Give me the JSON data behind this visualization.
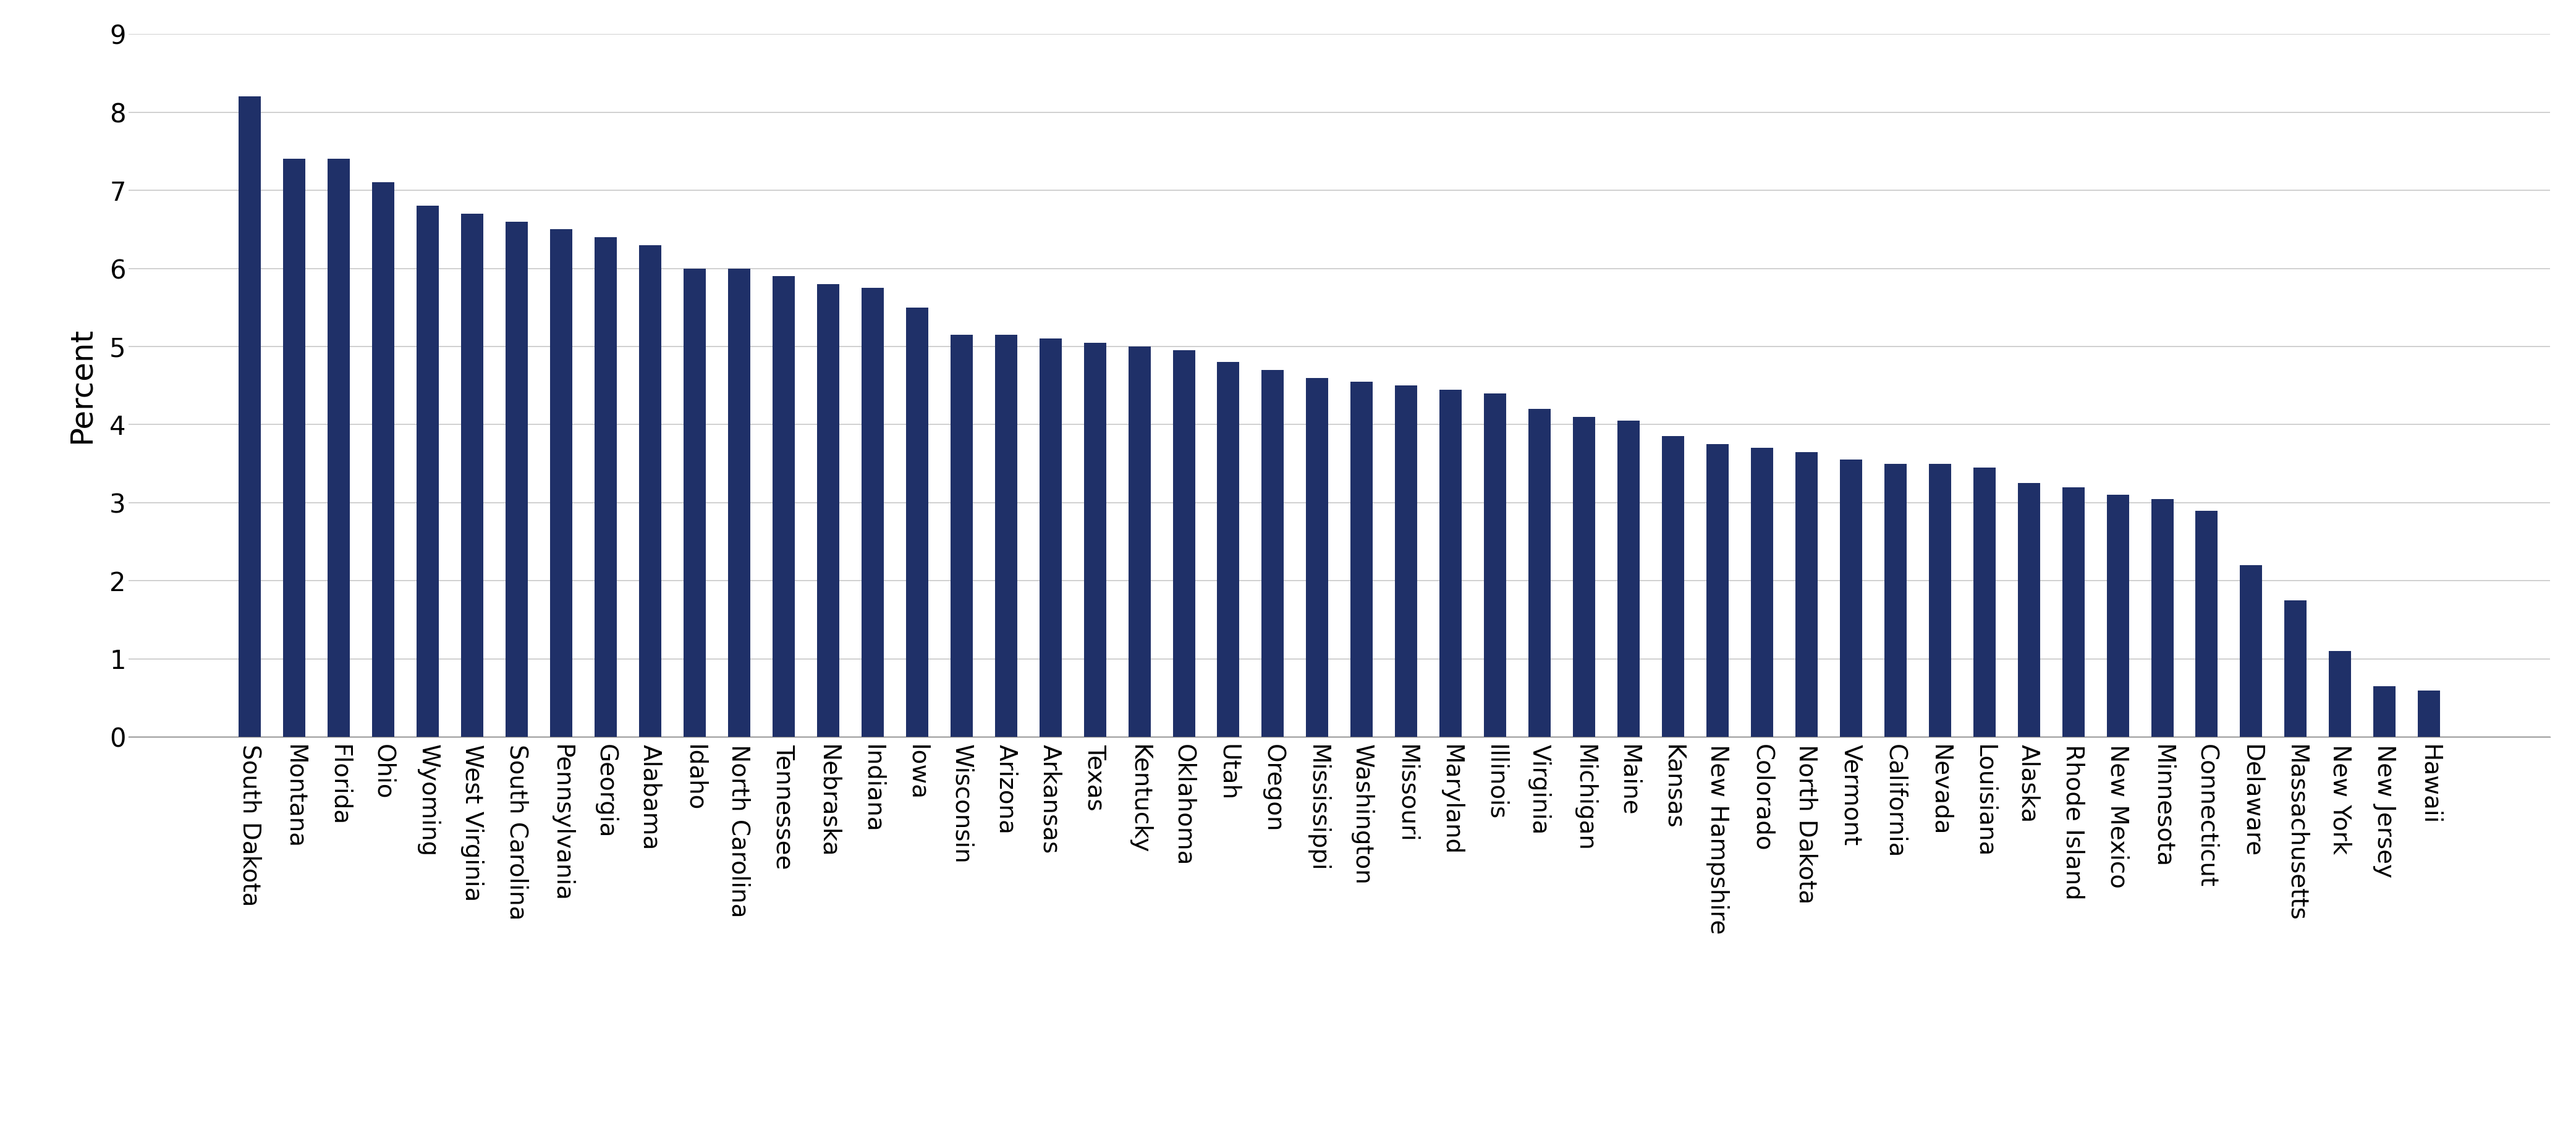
{
  "categories": [
    "South Dakota",
    "Montana",
    "Florida",
    "Ohio",
    "Wyoming",
    "West Virginia",
    "South Carolina",
    "Pennsylvania",
    "Georgia",
    "Alabama",
    "Idaho",
    "North Carolina",
    "Tennessee",
    "Nebraska",
    "Indiana",
    "Iowa",
    "Wisconsin",
    "Arizona",
    "Arkansas",
    "Texas",
    "Kentucky",
    "Oklahoma",
    "Utah",
    "Oregon",
    "Mississippi",
    "Washington",
    "Missouri",
    "Maryland",
    "Illinois",
    "Virginia",
    "Michigan",
    "Maine",
    "Kansas",
    "New Hampshire",
    "Colorado",
    "North Dakota",
    "Vermont",
    "California",
    "Nevada",
    "Louisiana",
    "Alaska",
    "Rhode Island",
    "New Mexico",
    "Minnesota",
    "Connecticut",
    "Delaware",
    "Massachusetts",
    "New York",
    "New Jersey",
    "Hawaii"
  ],
  "values": [
    8.2,
    7.4,
    7.4,
    7.1,
    6.8,
    6.7,
    6.6,
    6.5,
    6.4,
    6.3,
    6.0,
    6.0,
    5.9,
    5.8,
    5.75,
    5.5,
    5.15,
    5.15,
    5.1,
    5.05,
    5.0,
    4.95,
    4.8,
    4.7,
    4.6,
    4.55,
    4.5,
    4.45,
    4.4,
    4.2,
    4.1,
    4.05,
    3.85,
    3.75,
    3.7,
    3.65,
    3.55,
    3.5,
    3.5,
    3.45,
    3.25,
    3.2,
    3.1,
    3.05,
    2.9,
    2.2,
    1.75,
    1.1,
    0.65,
    0.6
  ],
  "bar_color": "#1f3068",
  "ylabel": "Percent",
  "ylim": [
    0,
    9
  ],
  "yticks": [
    0,
    1,
    2,
    3,
    4,
    5,
    6,
    7,
    8,
    9
  ],
  "grid_color": "#c8c8c8",
  "background_color": "#ffffff",
  "ylabel_fontsize": 36,
  "tick_fontsize": 30,
  "xtick_fontsize": 28,
  "bar_width": 0.5
}
